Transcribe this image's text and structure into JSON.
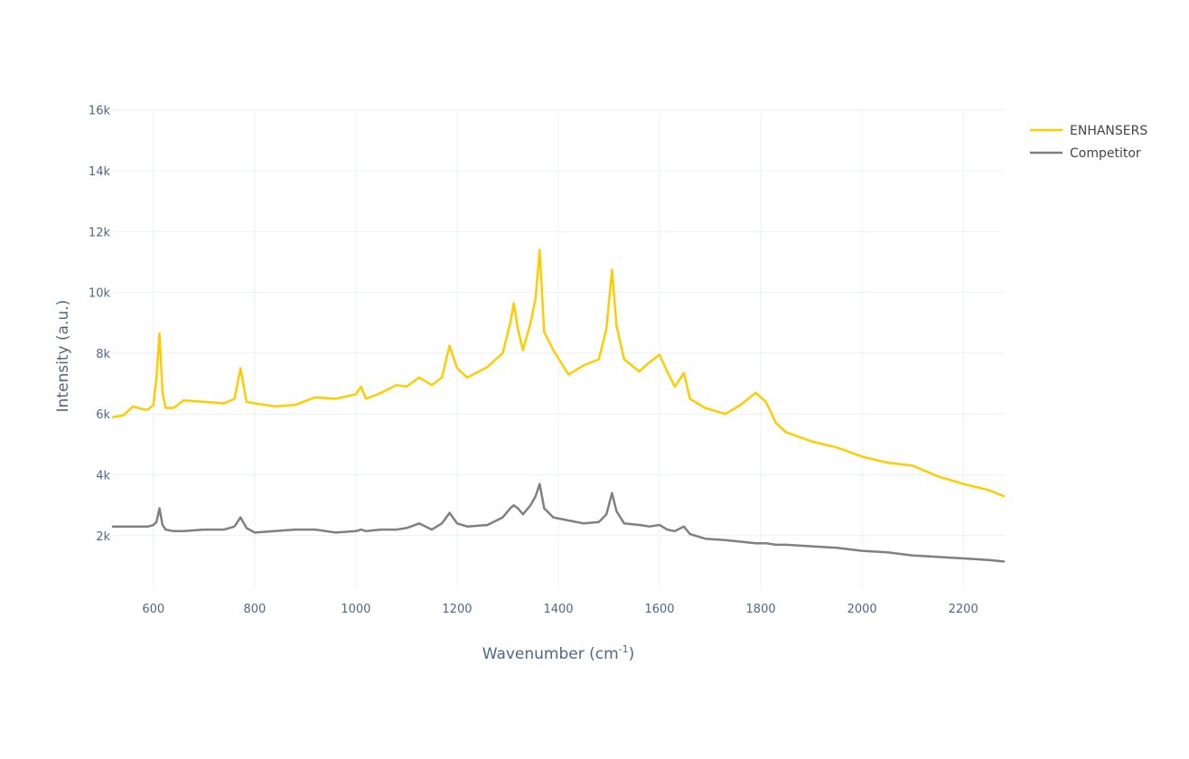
{
  "chart_data": {
    "type": "line",
    "xlabel": "Wavenumber (cm⁻¹)",
    "xlabel_parts": {
      "text": "Wavenumber (cm",
      "sup": "-1",
      "close": ")"
    },
    "ylabel": "Intensity (a.u.)",
    "xlim": [
      520,
      2280
    ],
    "ylim": [
      300,
      16200
    ],
    "x_ticks": [
      600,
      800,
      1000,
      1200,
      1400,
      1600,
      1800,
      2000,
      2200
    ],
    "x_tick_labels": [
      "600",
      "800",
      "1000",
      "1200",
      "1400",
      "1600",
      "1800",
      "2000",
      "2200"
    ],
    "y_ticks": [
      2000,
      4000,
      6000,
      8000,
      10000,
      12000,
      14000,
      16000
    ],
    "y_tick_labels": [
      "2k",
      "4k",
      "6k",
      "8k",
      "10k",
      "12k",
      "14k",
      "16k"
    ],
    "grid": true,
    "legend_position": "top-right",
    "x": [
      520,
      540,
      560,
      580,
      590,
      600,
      606,
      612,
      618,
      624,
      640,
      660,
      700,
      740,
      760,
      772,
      784,
      800,
      840,
      880,
      920,
      960,
      1000,
      1010,
      1020,
      1050,
      1080,
      1100,
      1125,
      1150,
      1170,
      1185,
      1200,
      1220,
      1260,
      1290,
      1305,
      1312,
      1320,
      1330,
      1345,
      1355,
      1363,
      1372,
      1390,
      1420,
      1450,
      1480,
      1495,
      1506,
      1515,
      1530,
      1560,
      1580,
      1600,
      1615,
      1630,
      1648,
      1660,
      1690,
      1730,
      1760,
      1790,
      1810,
      1830,
      1850,
      1900,
      1950,
      2000,
      2050,
      2100,
      2150,
      2200,
      2250,
      2280
    ],
    "series": [
      {
        "name": "ENHANSERS",
        "color": "#FFCC00",
        "values": [
          5900,
          5950,
          6250,
          6150,
          6150,
          6300,
          7200,
          8650,
          6700,
          6200,
          6200,
          6450,
          6400,
          6350,
          6500,
          7500,
          6400,
          6350,
          6250,
          6300,
          6550,
          6500,
          6650,
          6900,
          6500,
          6700,
          6950,
          6900,
          7200,
          6950,
          7200,
          8250,
          7500,
          7200,
          7550,
          8000,
          9000,
          9650,
          8800,
          8100,
          9000,
          9800,
          11400,
          8700,
          8100,
          7300,
          7600,
          7800,
          8800,
          10750,
          8900,
          7800,
          7400,
          7700,
          7950,
          7400,
          6900,
          7350,
          6500,
          6200,
          6000,
          6300,
          6700,
          6400,
          5700,
          5400,
          5100,
          4900,
          4600,
          4400,
          4300,
          3950,
          3700,
          3500,
          3300
        ]
      },
      {
        "name": "Competitor",
        "color": "#808080",
        "values": [
          2300,
          2300,
          2300,
          2300,
          2300,
          2350,
          2450,
          2900,
          2350,
          2200,
          2150,
          2150,
          2200,
          2200,
          2300,
          2600,
          2250,
          2100,
          2150,
          2200,
          2200,
          2100,
          2150,
          2200,
          2150,
          2200,
          2200,
          2250,
          2400,
          2200,
          2400,
          2750,
          2400,
          2300,
          2350,
          2600,
          2900,
          3000,
          2900,
          2700,
          3000,
          3300,
          3700,
          2900,
          2600,
          2500,
          2400,
          2450,
          2700,
          3400,
          2800,
          2400,
          2350,
          2300,
          2350,
          2200,
          2150,
          2300,
          2050,
          1900,
          1850,
          1800,
          1750,
          1750,
          1700,
          1700,
          1650,
          1600,
          1500,
          1450,
          1350,
          1300,
          1250,
          1200,
          1150
        ]
      }
    ]
  }
}
